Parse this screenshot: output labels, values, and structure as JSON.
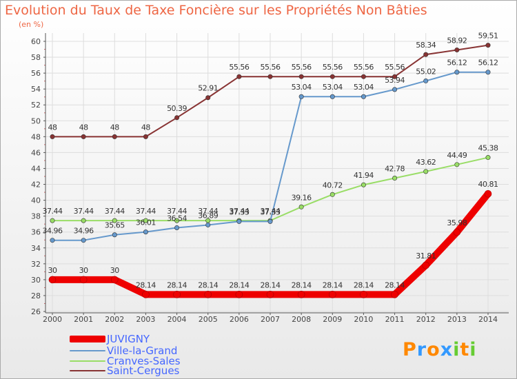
{
  "title": "Evolution du Taux de Taxe Foncière sur les Propriétés Non Bâties",
  "unit_label": "(en %)",
  "logo_text": "Proxiti",
  "colors": {
    "title": "#ee6644",
    "legend_text": "#4466ff",
    "grid": "#dddddd",
    "axis": "#555555",
    "label": "#444444"
  },
  "chart_data": {
    "type": "line",
    "title": "Evolution du Taux de Taxe Foncière sur les Propriétés Non Bâties",
    "ylabel": "(en %)",
    "xlabel": "",
    "x": [
      "2000",
      "2001",
      "2002",
      "2003",
      "2004",
      "2005",
      "2006",
      "2007",
      "2008",
      "2009",
      "2010",
      "2011",
      "2012",
      "2013",
      "2014"
    ],
    "ylim": [
      26,
      60
    ],
    "yticks": [
      26,
      28,
      30,
      32,
      34,
      36,
      38,
      40,
      42,
      44,
      46,
      48,
      50,
      52,
      54,
      56,
      58,
      60
    ],
    "grid": true,
    "legend_position": "bottom-left",
    "series": [
      {
        "name": "JUVIGNY",
        "color": "#ee0000",
        "values": [
          30,
          30,
          30,
          28.14,
          28.14,
          28.14,
          28.14,
          28.14,
          28.14,
          28.14,
          28.14,
          28.14,
          31.81,
          35.98,
          40.81
        ],
        "labels": [
          "30",
          "30",
          "30",
          "28.14",
          "28.14",
          "28.14",
          "28.14",
          "28.14",
          "28.14",
          "28.14",
          "28.14",
          "28.14",
          "31.81",
          "35.98",
          "40.81"
        ]
      },
      {
        "name": "Ville-la-Grand",
        "color": "#6699cc",
        "values": [
          34.96,
          34.96,
          35.65,
          36.01,
          36.54,
          36.89,
          37.33,
          37.33,
          53.04,
          53.04,
          53.04,
          53.94,
          55.02,
          56.12,
          56.12
        ],
        "labels": [
          "34.96",
          "34.96",
          "35.65",
          "36.01",
          "36.54",
          "36.89",
          "37.33",
          "37.33",
          "53.04",
          "53.04",
          "53.04",
          "53.94",
          "55.02",
          "56.12",
          "56.12"
        ]
      },
      {
        "name": "Cranves-Sales",
        "color": "#99dd66",
        "values": [
          37.44,
          37.44,
          37.44,
          37.44,
          37.44,
          37.44,
          37.44,
          37.44,
          39.16,
          40.72,
          41.94,
          42.78,
          43.62,
          44.49,
          45.38
        ],
        "labels": [
          "37.44",
          "37.44",
          "37.44",
          "37.44",
          "37.44",
          "37.44",
          "37.44",
          "37.44",
          "39.16",
          "40.72",
          "41.94",
          "42.78",
          "43.62",
          "44.49",
          "45.38"
        ]
      },
      {
        "name": "Saint-Cergues",
        "color": "#883333",
        "values": [
          48,
          48,
          48,
          48,
          50.39,
          52.91,
          55.56,
          55.56,
          55.56,
          55.56,
          55.56,
          55.56,
          58.34,
          58.92,
          59.51
        ],
        "labels": [
          "48",
          "48",
          "48",
          "48",
          "50.39",
          "52.91",
          "55.56",
          "55.56",
          "55.56",
          "55.56",
          "55.56",
          "55.56",
          "58.34",
          "58.92",
          "59.51"
        ]
      }
    ]
  }
}
